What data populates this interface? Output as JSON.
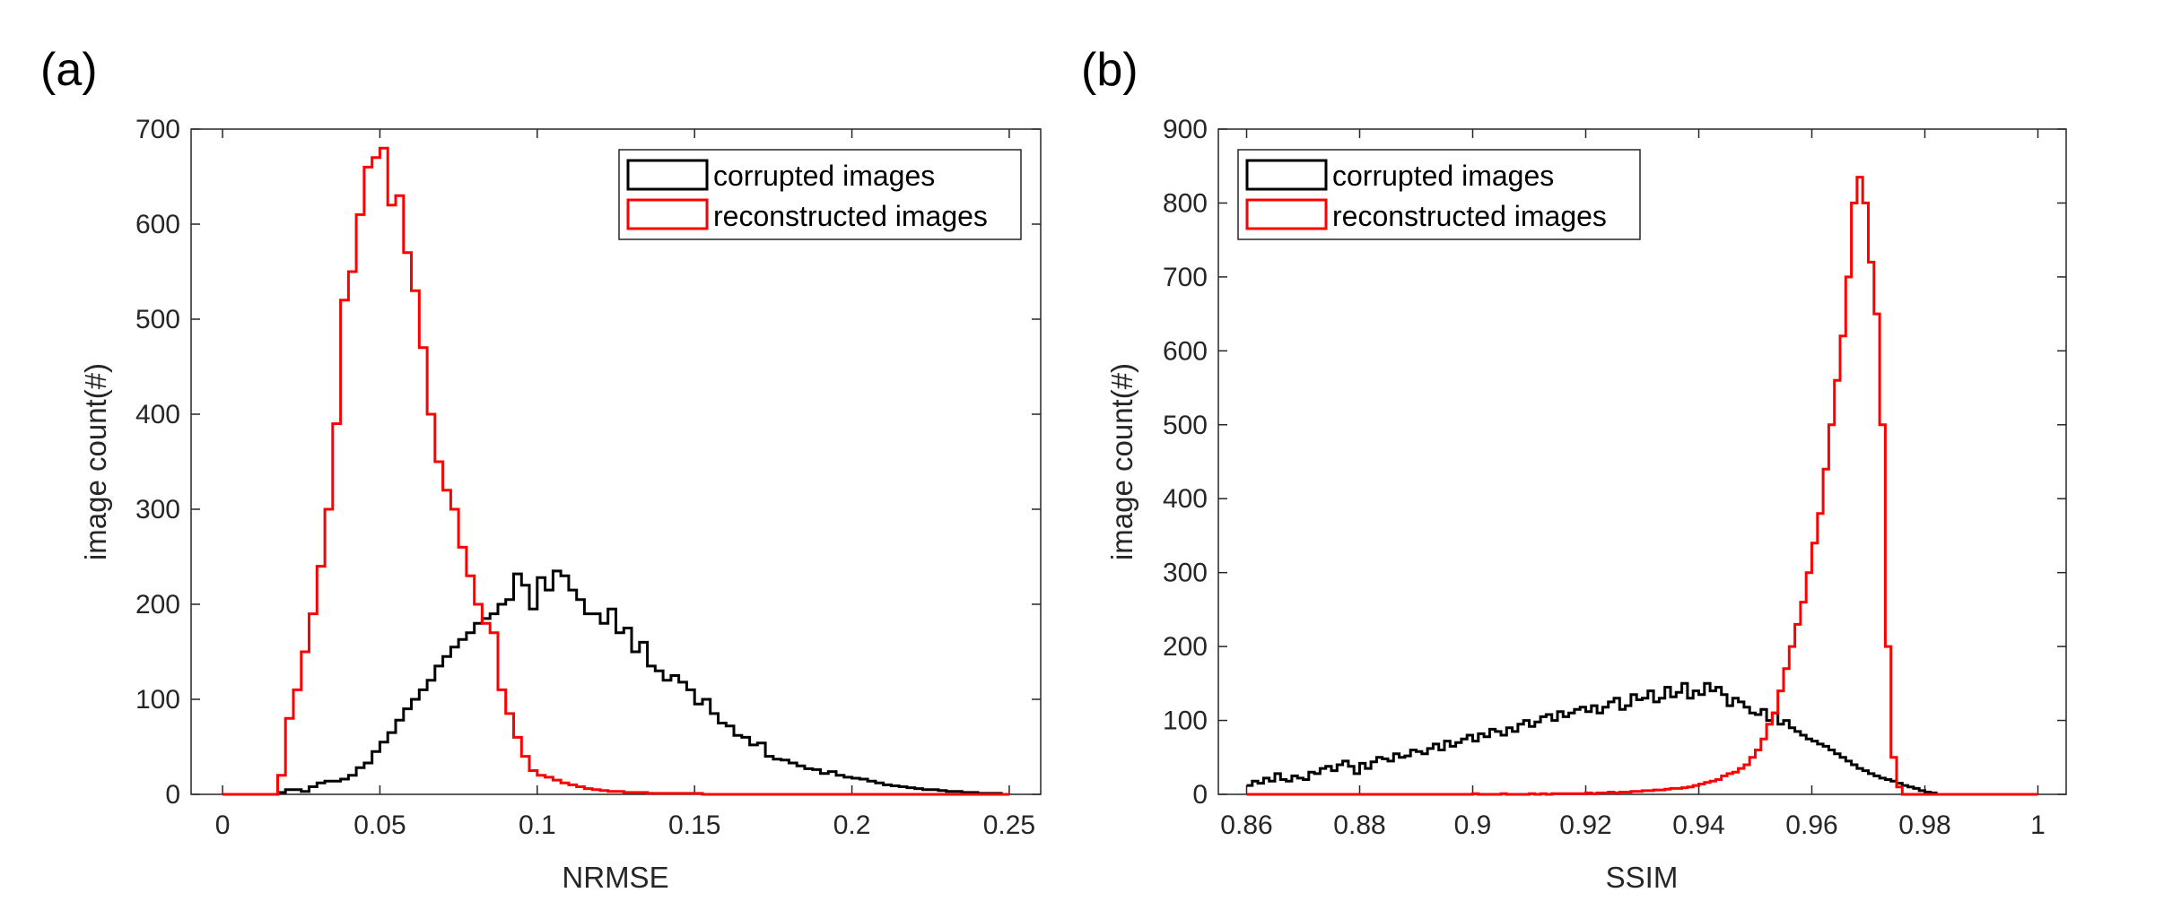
{
  "chart_data": [
    {
      "type": "histogram",
      "panel_label": "(a)",
      "xlabel": "NRMSE",
      "ylabel": "image count(#)",
      "xlim": [
        -0.01,
        0.26
      ],
      "ylim": [
        0,
        700
      ],
      "x_ticks": [
        "0",
        "0.05",
        "0.1",
        "0.15",
        "0.2",
        "0.25"
      ],
      "y_ticks": [
        "0",
        "100",
        "200",
        "300",
        "400",
        "500",
        "600",
        "700"
      ],
      "legend": {
        "position": "top-right",
        "entries": [
          "corrupted images",
          "reconstructed images"
        ]
      },
      "bin_edges": {
        "start": 0,
        "width": 0.0025,
        "count": 100
      },
      "series": [
        {
          "name": "corrupted images",
          "color": "#000000",
          "values": [
            0,
            0,
            0,
            0,
            0,
            0,
            0,
            2,
            5,
            5,
            3,
            8,
            12,
            14,
            14,
            16,
            20,
            28,
            33,
            45,
            55,
            65,
            78,
            90,
            100,
            110,
            120,
            135,
            145,
            155,
            163,
            170,
            180,
            185,
            190,
            200,
            205,
            232,
            220,
            195,
            228,
            215,
            235,
            230,
            215,
            205,
            190,
            190,
            180,
            195,
            170,
            175,
            150,
            160,
            135,
            130,
            120,
            125,
            118,
            110,
            95,
            100,
            85,
            75,
            72,
            62,
            60,
            52,
            54,
            40,
            37,
            36,
            33,
            30,
            27,
            26,
            22,
            24,
            20,
            18,
            17,
            16,
            14,
            12,
            10,
            9,
            8,
            7,
            6,
            5,
            5,
            4,
            3,
            3,
            2,
            2,
            1,
            1,
            1,
            0
          ]
        },
        {
          "name": "reconstructed images",
          "color": "#ff0000",
          "values": [
            0,
            0,
            0,
            0,
            0,
            0,
            0,
            20,
            80,
            110,
            150,
            190,
            240,
            300,
            390,
            520,
            550,
            610,
            660,
            670,
            680,
            620,
            630,
            570,
            530,
            470,
            400,
            350,
            320,
            300,
            260,
            230,
            200,
            180,
            170,
            110,
            85,
            60,
            40,
            25,
            20,
            18,
            15,
            12,
            10,
            8,
            6,
            5,
            4,
            3,
            3,
            2,
            2,
            2,
            1,
            1,
            1,
            1,
            1,
            1,
            1,
            0,
            0,
            0,
            0,
            0,
            0,
            0,
            0,
            0,
            0,
            0,
            0,
            0,
            0,
            0,
            0,
            0,
            0,
            0,
            0,
            0,
            0,
            0,
            0,
            0,
            0,
            0,
            0,
            0,
            0,
            0,
            0,
            0,
            0,
            0,
            0,
            0,
            0,
            0
          ]
        }
      ]
    },
    {
      "type": "histogram",
      "panel_label": "(b)",
      "xlabel": "SSIM",
      "ylabel": "image count(#)",
      "xlim": [
        0.855,
        1.005
      ],
      "ylim": [
        0,
        900
      ],
      "x_ticks": [
        "0.86",
        "0.88",
        "0.9",
        "0.92",
        "0.94",
        "0.96",
        "0.98",
        "1"
      ],
      "y_ticks": [
        "0",
        "100",
        "200",
        "300",
        "400",
        "500",
        "600",
        "700",
        "800",
        "900"
      ],
      "legend": {
        "position": "top-left",
        "entries": [
          "corrupted images",
          "reconstructed images"
        ]
      },
      "bin_edges": {
        "start": 0.86,
        "width": 0.001,
        "count": 140
      },
      "series": [
        {
          "name": "corrupted images",
          "color": "#000000",
          "values": [
            12,
            18,
            15,
            22,
            18,
            28,
            20,
            18,
            25,
            22,
            20,
            30,
            28,
            35,
            38,
            32,
            40,
            45,
            38,
            28,
            42,
            35,
            44,
            50,
            48,
            45,
            55,
            50,
            52,
            60,
            58,
            55,
            62,
            68,
            60,
            72,
            65,
            70,
            75,
            80,
            72,
            82,
            78,
            88,
            85,
            80,
            90,
            85,
            95,
            100,
            92,
            98,
            105,
            108,
            100,
            112,
            105,
            110,
            115,
            118,
            112,
            120,
            110,
            118,
            125,
            130,
            115,
            120,
            135,
            128,
            130,
            140,
            125,
            130,
            145,
            132,
            138,
            150,
            130,
            140,
            135,
            150,
            140,
            145,
            135,
            120,
            130,
            125,
            118,
            110,
            108,
            115,
            100,
            110,
            95,
            100,
            90,
            85,
            80,
            75,
            72,
            68,
            65,
            60,
            55,
            50,
            45,
            40,
            35,
            32,
            28,
            25,
            22,
            20,
            18,
            15,
            12,
            10,
            8,
            5,
            3,
            2,
            0,
            0,
            0,
            0,
            0,
            0,
            0,
            0,
            0,
            0,
            0,
            0,
            0,
            0,
            0,
            0,
            0,
            0
          ]
        },
        {
          "name": "reconstructed images",
          "color": "#ff0000",
          "values": [
            0,
            0,
            0,
            0,
            0,
            0,
            0,
            0,
            0,
            0,
            0,
            0,
            0,
            0,
            0,
            0,
            0,
            0,
            0,
            0,
            0,
            0,
            0,
            0,
            0,
            0,
            0,
            0,
            0,
            0,
            0,
            0,
            0,
            0,
            0,
            0,
            0,
            0,
            0,
            0,
            1,
            0,
            0,
            0,
            0,
            1,
            0,
            0,
            0,
            0,
            1,
            0,
            1,
            0,
            1,
            1,
            1,
            1,
            1,
            1,
            2,
            1,
            2,
            2,
            3,
            2,
            3,
            3,
            4,
            4,
            5,
            5,
            6,
            6,
            7,
            8,
            8,
            9,
            10,
            12,
            14,
            16,
            18,
            20,
            25,
            28,
            30,
            35,
            40,
            50,
            60,
            75,
            95,
            110,
            140,
            170,
            200,
            230,
            260,
            300,
            340,
            380,
            440,
            500,
            560,
            620,
            700,
            800,
            835,
            800,
            720,
            650,
            500,
            200,
            50,
            10,
            0,
            0,
            0,
            0,
            0,
            0,
            0,
            0,
            0,
            0,
            0,
            0,
            0,
            0,
            0,
            0,
            0,
            0,
            0,
            0,
            0,
            0,
            0,
            0
          ]
        }
      ]
    }
  ]
}
